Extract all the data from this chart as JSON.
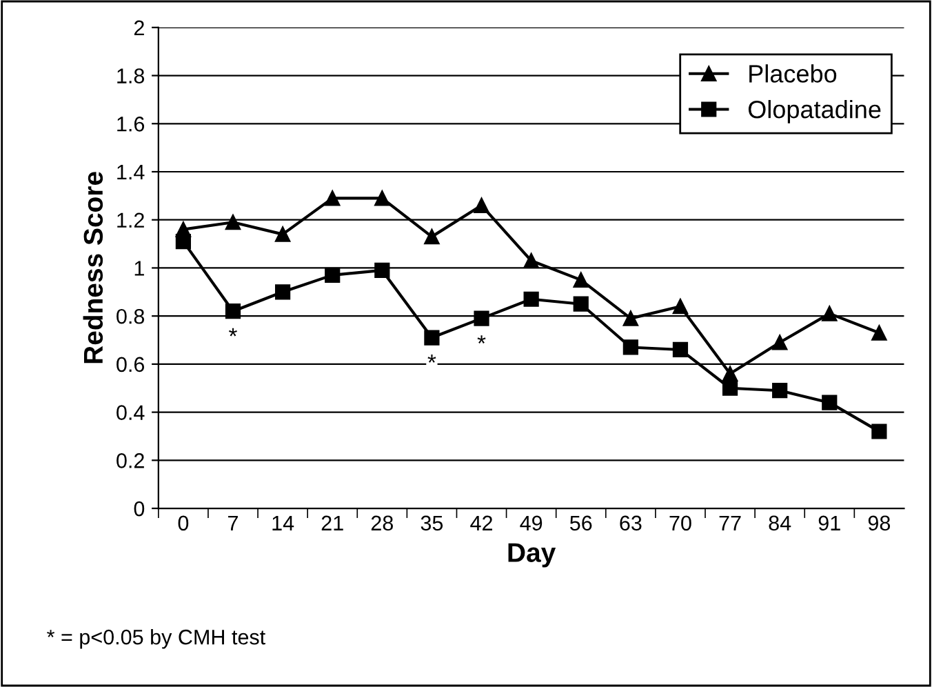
{
  "chart_data": {
    "type": "line",
    "xlabel": "Day",
    "ylabel": "Redness Score",
    "categories": [
      "0",
      "7",
      "14",
      "21",
      "28",
      "35",
      "42",
      "49",
      "56",
      "63",
      "70",
      "77",
      "84",
      "91",
      "98"
    ],
    "series": [
      {
        "name": "Placebo",
        "color": "#000000",
        "marker": "triangle",
        "values": [
          1.16,
          1.19,
          1.14,
          1.29,
          1.29,
          1.13,
          1.26,
          1.03,
          0.95,
          0.79,
          0.84,
          0.56,
          0.69,
          0.81,
          0.73
        ]
      },
      {
        "name": "Olopatadine",
        "color": "#000000",
        "marker": "square",
        "values": [
          1.11,
          0.82,
          0.9,
          0.97,
          0.99,
          0.71,
          0.79,
          0.87,
          0.85,
          0.67,
          0.66,
          0.5,
          0.49,
          0.44,
          0.32
        ]
      }
    ],
    "ylim": [
      0,
      2
    ],
    "yticks": [
      0,
      {
        "value": 0.2,
        "label": "0.2"
      },
      {
        "value": 0.4,
        "label": "0.4"
      },
      {
        "value": 0.6,
        "label": "0.6"
      },
      {
        "value": 0.8,
        "label": "0.8"
      },
      1,
      {
        "value": 1.2,
        "label": "1.2"
      },
      {
        "value": 1.4,
        "label": "1.4"
      },
      {
        "value": 1.6,
        "label": "1.6"
      },
      {
        "value": 1.8,
        "label": "1.8"
      },
      2
    ],
    "grid": "y",
    "legend": "top right",
    "line_style": "solid",
    "annotations": [
      {
        "text": "*",
        "x": "7",
        "y": 0.82
      },
      {
        "text": "*",
        "x": "35",
        "y": 0.71
      },
      {
        "text": "*",
        "x": "42",
        "y": 0.79
      },
      "* = p<0.05 by CMH test"
    ]
  }
}
